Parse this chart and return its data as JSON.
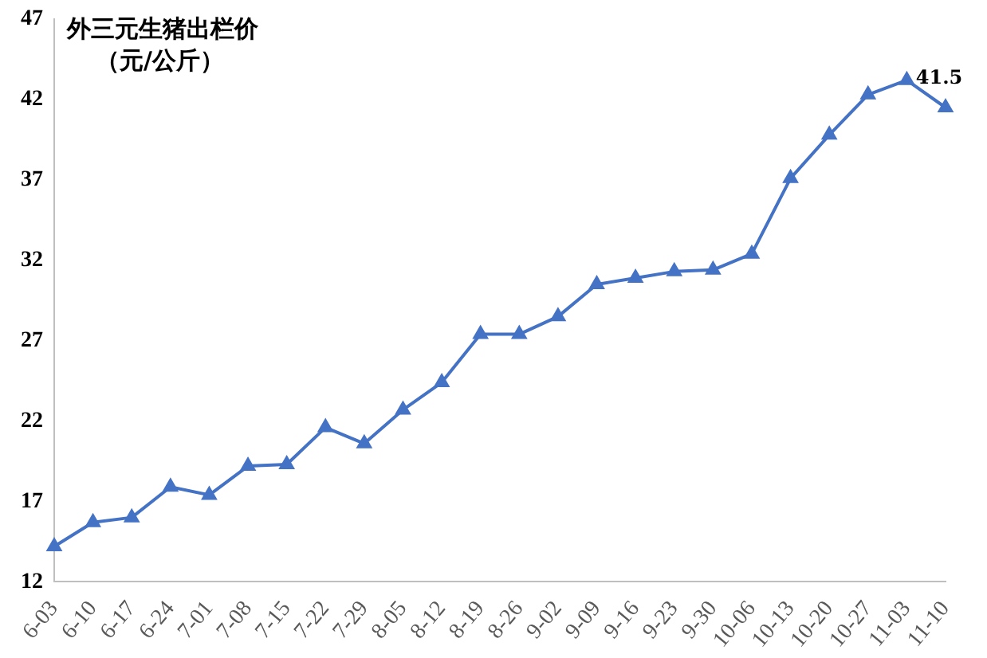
{
  "chart_data": {
    "type": "line",
    "title": "外三元生猪出栏价",
    "subtitle": "（元/公斤）",
    "categories": [
      "6-03",
      "6-10",
      "6-17",
      "6-24",
      "7-01",
      "7-08",
      "7-15",
      "7-22",
      "7-29",
      "8-05",
      "8-12",
      "8-19",
      "8-26",
      "9-02",
      "9-09",
      "9-16",
      "9-23",
      "9-30",
      "10-06",
      "10-13",
      "10-20",
      "10-27",
      "11-03",
      "11-10"
    ],
    "series": [
      {
        "color": "#4472c4",
        "values": [
          14.2,
          15.7,
          16.0,
          17.9,
          17.4,
          19.2,
          19.3,
          21.6,
          20.6,
          22.7,
          24.4,
          27.4,
          27.4,
          28.5,
          30.5,
          30.9,
          31.3,
          31.4,
          32.4,
          37.1,
          39.8,
          42.3,
          43.2,
          41.5
        ],
        "value_labels": [
          null,
          null,
          null,
          null,
          null,
          null,
          null,
          null,
          null,
          null,
          null,
          null,
          null,
          null,
          null,
          null,
          null,
          null,
          null,
          null,
          null,
          null,
          null,
          "41.5"
        ]
      }
    ],
    "ylim": [
      12,
      47
    ],
    "yticks": [
      12,
      17,
      22,
      27,
      32,
      37,
      42,
      47
    ],
    "grid": false,
    "legend": false,
    "marker": "triangle",
    "line_style": "solid"
  }
}
